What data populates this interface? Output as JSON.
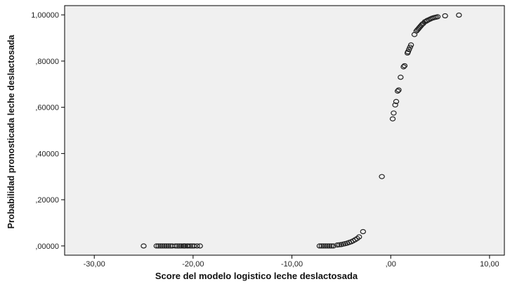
{
  "chart_data": {
    "type": "scatter",
    "title": "",
    "xlabel": "Score del modelo logistico leche deslactosada",
    "ylabel": "Probabilidad pronosticada leche deslactosada",
    "xlim": [
      -33,
      11.5
    ],
    "ylim": [
      -0.04,
      1.04
    ],
    "x_ticks": [
      -30,
      -20,
      -10,
      0,
      10
    ],
    "x_tick_labels": [
      "-30,00",
      "-20,00",
      "-10,00",
      ",00",
      "10,00"
    ],
    "y_ticks": [
      0,
      0.2,
      0.4,
      0.6,
      0.8,
      1.0
    ],
    "y_tick_labels": [
      ",00000",
      ",20000",
      ",40000",
      ",60000",
      ",80000",
      "1,00000"
    ],
    "grid": false,
    "marker": "open-circle",
    "colors": {
      "plot_background": "#f0f0f0",
      "marker": "#222222",
      "axis": "#000000"
    },
    "points": [
      [
        -25.0,
        0.0
      ],
      [
        -23.7,
        0.0
      ],
      [
        -23.5,
        0.0
      ],
      [
        -23.3,
        0.0
      ],
      [
        -23.1,
        0.0
      ],
      [
        -22.9,
        0.0
      ],
      [
        -22.7,
        0.0
      ],
      [
        -22.5,
        0.0
      ],
      [
        -22.3,
        0.0
      ],
      [
        -22.1,
        0.0
      ],
      [
        -21.8,
        0.0
      ],
      [
        -21.6,
        0.0
      ],
      [
        -21.4,
        0.0
      ],
      [
        -21.2,
        0.0
      ],
      [
        -21.0,
        0.0
      ],
      [
        -20.9,
        0.0
      ],
      [
        -20.8,
        0.0
      ],
      [
        -20.6,
        0.0
      ],
      [
        -20.5,
        0.0
      ],
      [
        -20.3,
        0.0
      ],
      [
        -20.1,
        0.0
      ],
      [
        -19.9,
        0.0
      ],
      [
        -19.6,
        0.0
      ],
      [
        -19.3,
        0.0
      ],
      [
        -7.2,
        0.0
      ],
      [
        -7.0,
        0.0
      ],
      [
        -6.8,
        0.0
      ],
      [
        -6.6,
        0.0
      ],
      [
        -6.4,
        0.0
      ],
      [
        -6.2,
        0.0
      ],
      [
        -6.0,
        0.0
      ],
      [
        -5.8,
        0.0
      ],
      [
        -5.4,
        0.004
      ],
      [
        -5.2,
        0.005
      ],
      [
        -5.0,
        0.006
      ],
      [
        -4.8,
        0.008
      ],
      [
        -4.6,
        0.01
      ],
      [
        -4.4,
        0.012
      ],
      [
        -4.2,
        0.015
      ],
      [
        -4.0,
        0.018
      ],
      [
        -3.8,
        0.022
      ],
      [
        -3.6,
        0.027
      ],
      [
        -3.4,
        0.032
      ],
      [
        -3.2,
        0.039
      ],
      [
        -2.8,
        0.062
      ],
      [
        -0.9,
        0.3
      ],
      [
        0.2,
        0.55
      ],
      [
        0.3,
        0.575
      ],
      [
        0.45,
        0.61
      ],
      [
        0.55,
        0.625
      ],
      [
        0.7,
        0.67
      ],
      [
        0.8,
        0.675
      ],
      [
        1.0,
        0.73
      ],
      [
        1.3,
        0.775
      ],
      [
        1.4,
        0.78
      ],
      [
        1.7,
        0.835
      ],
      [
        1.75,
        0.84
      ],
      [
        1.85,
        0.85
      ],
      [
        1.95,
        0.86
      ],
      [
        2.05,
        0.87
      ],
      [
        2.4,
        0.915
      ],
      [
        2.6,
        0.93
      ],
      [
        2.7,
        0.935
      ],
      [
        2.8,
        0.94
      ],
      [
        2.9,
        0.945
      ],
      [
        3.0,
        0.95
      ],
      [
        3.1,
        0.955
      ],
      [
        3.2,
        0.96
      ],
      [
        3.3,
        0.963
      ],
      [
        3.45,
        0.97
      ],
      [
        3.6,
        0.973
      ],
      [
        3.7,
        0.976
      ],
      [
        3.85,
        0.979
      ],
      [
        4.0,
        0.982
      ],
      [
        4.15,
        0.985
      ],
      [
        4.3,
        0.987
      ],
      [
        4.45,
        0.989
      ],
      [
        4.6,
        0.99
      ],
      [
        4.75,
        0.992
      ],
      [
        5.5,
        0.996
      ],
      [
        6.9,
        0.999
      ]
    ]
  }
}
